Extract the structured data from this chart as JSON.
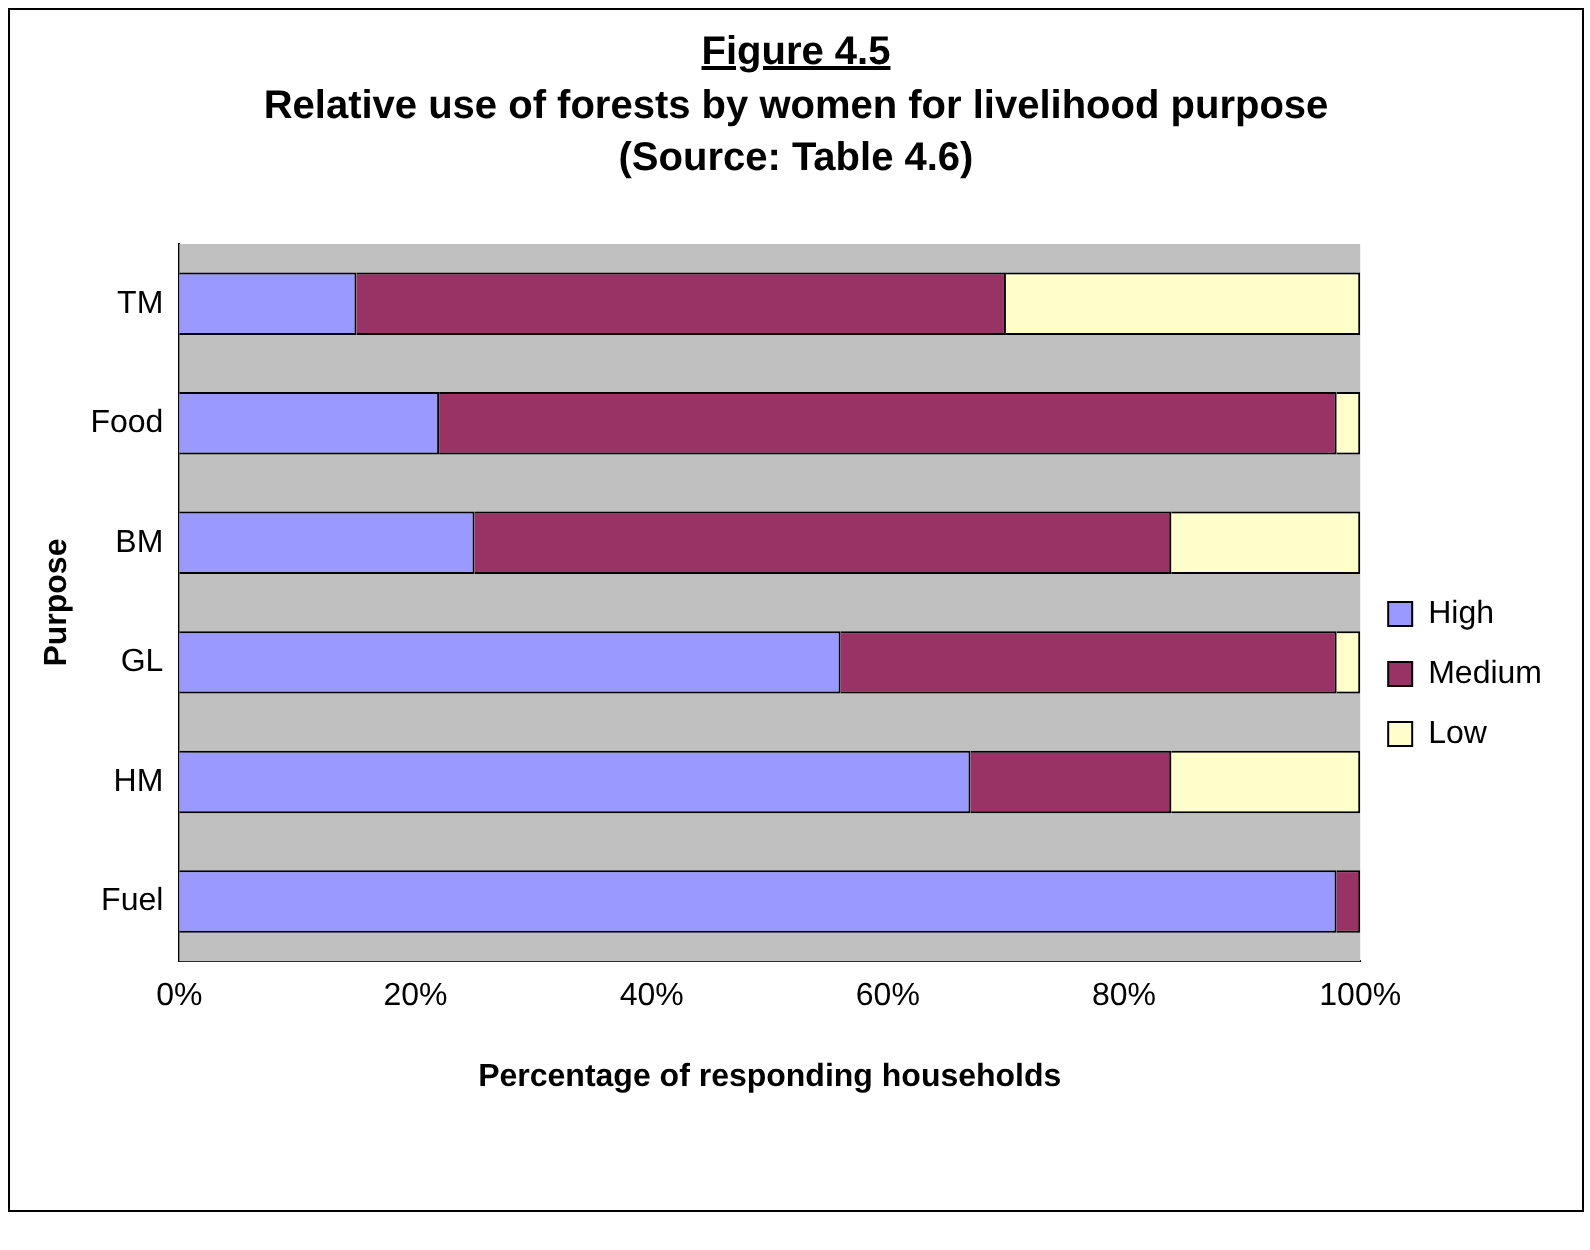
{
  "chart_data": {
    "type": "bar",
    "orientation": "horizontal",
    "stacked": true,
    "title": "Figure 4.5",
    "subtitle": "Relative use of forests by women for livelihood purpose (Source: Table 4.6)",
    "xlabel": "Percentage of responding households",
    "ylabel": "Purpose",
    "categories": [
      "TM",
      "Food",
      "BM",
      "GL",
      "HM",
      "Fuel"
    ],
    "series": [
      {
        "name": "High",
        "color": "#9999ff",
        "values": [
          15,
          22,
          25,
          56,
          67,
          98
        ]
      },
      {
        "name": "Medium",
        "color": "#993366",
        "values": [
          55,
          76,
          59,
          42,
          17,
          2
        ]
      },
      {
        "name": "Low",
        "color": "#ffffcc",
        "values": [
          30,
          2,
          16,
          2,
          16,
          0
        ]
      }
    ],
    "xlim": [
      0,
      100
    ],
    "xticks": [
      {
        "value": 0,
        "label": "0%"
      },
      {
        "value": 20,
        "label": "20%"
      },
      {
        "value": 40,
        "label": "40%"
      },
      {
        "value": 60,
        "label": "60%"
      },
      {
        "value": 80,
        "label": "80%"
      },
      {
        "value": 100,
        "label": "100%"
      }
    ],
    "grid": false,
    "legend": "right"
  }
}
